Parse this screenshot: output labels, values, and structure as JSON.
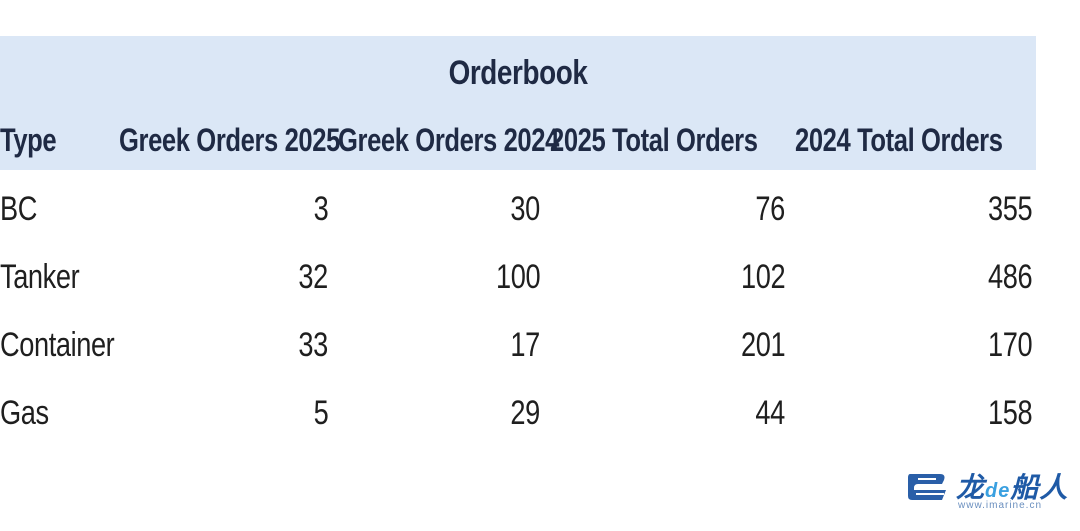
{
  "table": {
    "title": "Orderbook",
    "headers": [
      "Type",
      "Greek Orders 2025",
      "Greek Orders 2024",
      "2025 Total Orders",
      "2024 Total Orders"
    ],
    "rows": [
      {
        "type": "BC",
        "values": [
          "3",
          "30",
          "76",
          "355"
        ]
      },
      {
        "type": "Tanker",
        "values": [
          "32",
          "100",
          "102",
          "486"
        ]
      },
      {
        "type": "Container",
        "values": [
          "33",
          "17",
          "201",
          "170"
        ]
      },
      {
        "type": "Gas",
        "values": [
          "5",
          "29",
          "44",
          "158"
        ]
      }
    ],
    "header_bg": "#dbe7f6"
  },
  "watermark": {
    "brand_prefix": "龙",
    "brand_mid": "de",
    "brand_suffix": "船人",
    "url": "www.imarine.cn",
    "icon": "ship-logo-icon"
  }
}
